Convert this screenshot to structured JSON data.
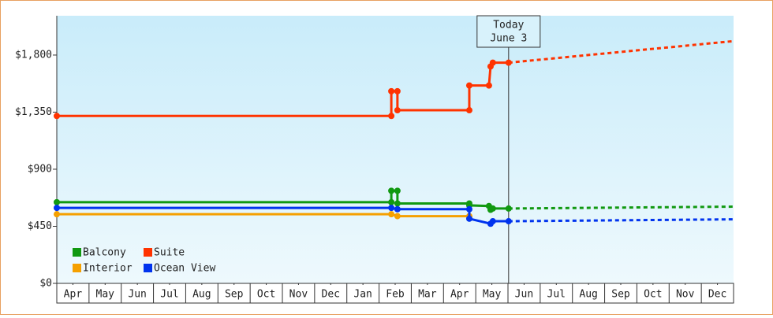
{
  "chart_data": {
    "type": "line",
    "xlim": [
      0,
      21
    ],
    "ylim": [
      0,
      2110
    ],
    "xticks": [
      {
        "value": 0.5,
        "label": "Apr"
      },
      {
        "value": 1.5,
        "label": "May"
      },
      {
        "value": 2.5,
        "label": "Jun"
      },
      {
        "value": 3.5,
        "label": "Jul"
      },
      {
        "value": 4.5,
        "label": "Aug"
      },
      {
        "value": 5.5,
        "label": "Sep"
      },
      {
        "value": 6.5,
        "label": "Oct"
      },
      {
        "value": 7.5,
        "label": "Nov"
      },
      {
        "value": 8.5,
        "label": "Dec"
      },
      {
        "value": 9.5,
        "label": "Jan"
      },
      {
        "value": 10.5,
        "label": "Feb"
      },
      {
        "value": 11.5,
        "label": "Mar"
      },
      {
        "value": 12.5,
        "label": "Apr"
      },
      {
        "value": 13.5,
        "label": "May"
      },
      {
        "value": 14.5,
        "label": "Jun"
      },
      {
        "value": 15.5,
        "label": "Jul"
      },
      {
        "value": 16.5,
        "label": "Aug"
      },
      {
        "value": 17.5,
        "label": "Sep"
      },
      {
        "value": 18.5,
        "label": "Oct"
      },
      {
        "value": 19.5,
        "label": "Nov"
      },
      {
        "value": 20.5,
        "label": "Dec"
      }
    ],
    "yticks": [
      {
        "value": 0,
        "label": "$0"
      },
      {
        "value": 450,
        "label": "$450"
      },
      {
        "value": 900,
        "label": "$900"
      },
      {
        "value": 1350,
        "label": "$1,350"
      },
      {
        "value": 1800,
        "label": "$1,800"
      }
    ],
    "grid": false,
    "legend": "lower left",
    "annotation": {
      "x": 14.02,
      "lines": [
        "Today",
        "June 3"
      ]
    },
    "series": [
      {
        "name": "Balcony",
        "color": "#119911",
        "x": [
          0,
          10.38,
          10.38,
          10.57,
          10.57,
          12.8,
          12.8,
          13.41,
          13.46,
          13.53,
          14.02
        ],
        "values": [
          640,
          640,
          730,
          730,
          630,
          630,
          615,
          610,
          580,
          590,
          590
        ],
        "forecast": {
          "x": [
            14.02,
            21
          ],
          "values": [
            590,
            605
          ]
        }
      },
      {
        "name": "Suite",
        "color": "#ff3300",
        "x": [
          0,
          10.38,
          10.38,
          10.57,
          10.57,
          12.8,
          12.8,
          13.41,
          13.46,
          13.53,
          14.02
        ],
        "values": [
          1320,
          1320,
          1515,
          1515,
          1365,
          1365,
          1560,
          1560,
          1710,
          1740,
          1740
        ],
        "forecast": {
          "x": [
            14.02,
            21
          ],
          "values": [
            1740,
            1910
          ]
        }
      },
      {
        "name": "Interior",
        "color": "#f5a000",
        "x": [
          0,
          10.38,
          10.57,
          12.8
        ],
        "values": [
          545,
          545,
          530,
          530
        ],
        "forecast": {
          "x": [],
          "values": []
        }
      },
      {
        "name": "Ocean View",
        "color": "#0033ee",
        "x": [
          0,
          10.38,
          10.57,
          12.8,
          12.8,
          13.46,
          13.53,
          14.02
        ],
        "values": [
          595,
          595,
          585,
          585,
          510,
          470,
          490,
          490
        ],
        "forecast": {
          "x": [
            14.02,
            21
          ],
          "values": [
            490,
            505
          ]
        }
      }
    ]
  }
}
